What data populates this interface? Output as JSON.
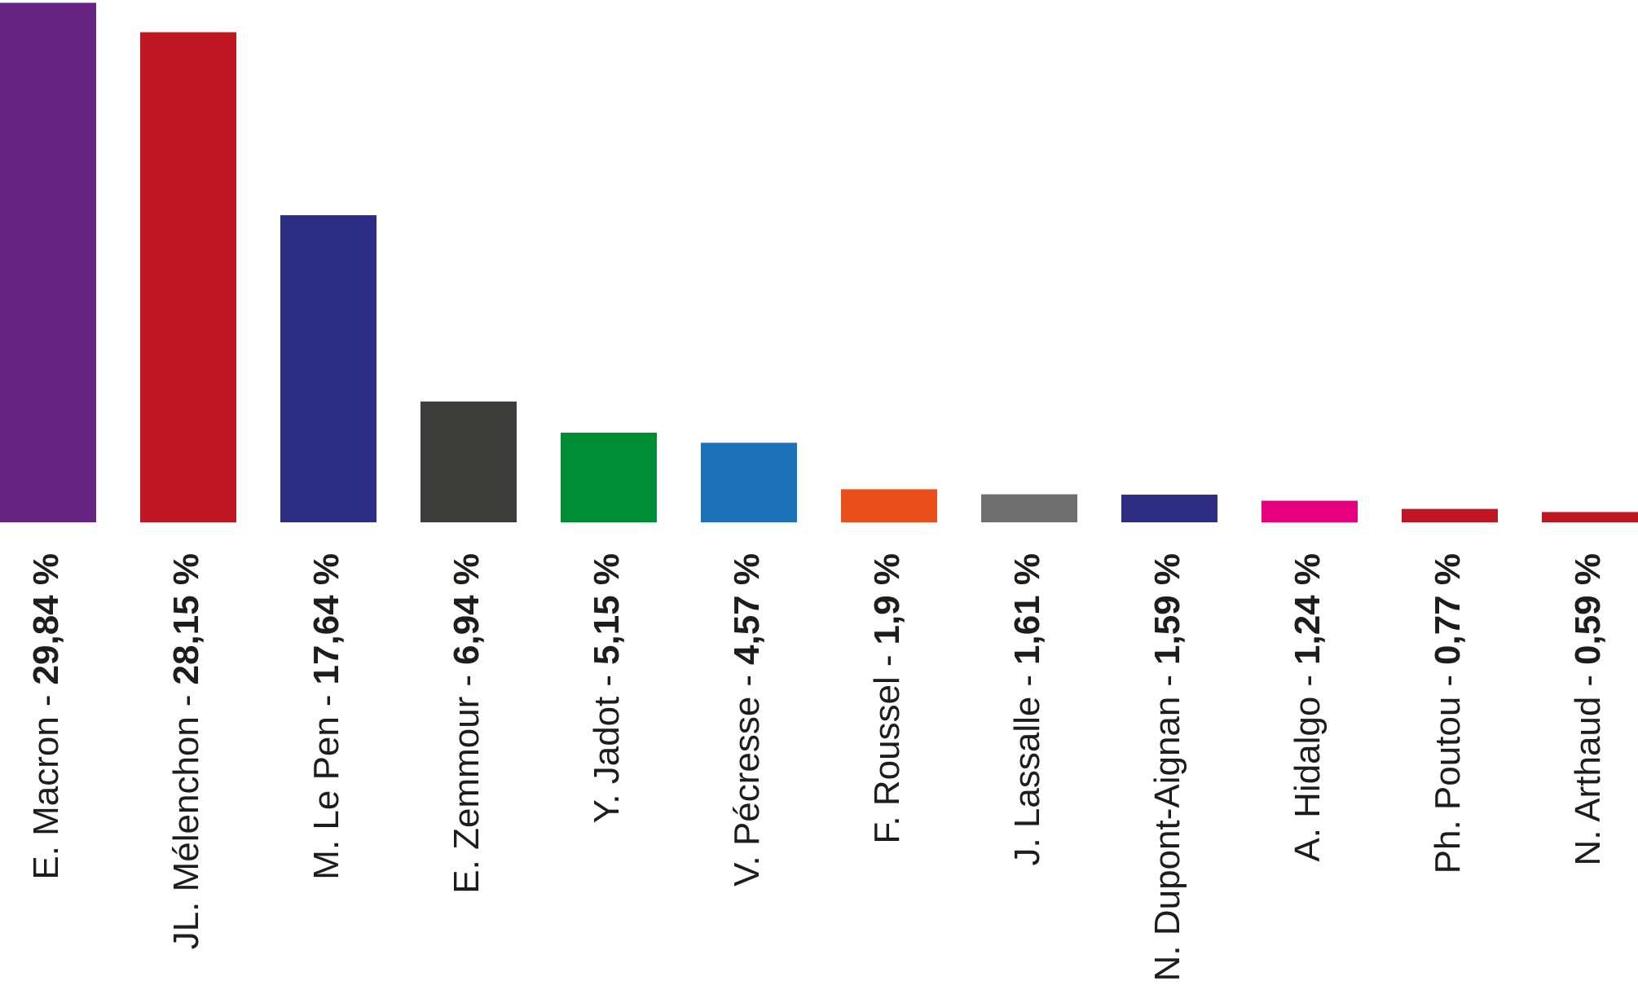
{
  "chart_data": {
    "type": "bar",
    "categories": [
      "E. Macron",
      "JL. Mélenchon",
      "M. Le Pen",
      "E. Zemmour",
      "Y. Jadot",
      "V. Pécresse",
      "F. Roussel",
      "J. Lassalle",
      "N. Dupont-Aignan",
      "A. Hidalgo",
      "Ph. Poutou",
      "N. Arthaud"
    ],
    "separator": "-",
    "values": [
      29.84,
      28.15,
      17.64,
      6.94,
      5.15,
      4.57,
      1.9,
      1.61,
      1.59,
      1.24,
      0.77,
      0.59
    ],
    "value_labels": [
      "29,84 %",
      "28,15 %",
      "17,64 %",
      "6,94 %",
      "5,15 %",
      "4,57 %",
      "1,9 %",
      "1,61 %",
      "1,59 %",
      "1,24 %",
      "0,77 %",
      "0,59 %"
    ],
    "colors": [
      "#662483",
      "#be1622",
      "#2d2e83",
      "#3c3c3b",
      "#008d36",
      "#1d71b8",
      "#e94e1b",
      "#706f6f",
      "#2d2e83",
      "#e6007e",
      "#be1622",
      "#be1622"
    ],
    "ylim": [
      0,
      30
    ]
  }
}
